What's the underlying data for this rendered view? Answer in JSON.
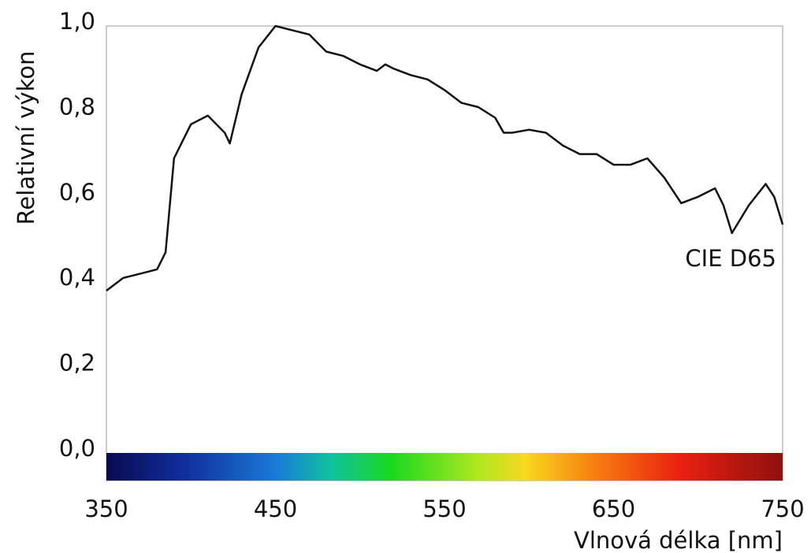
{
  "chart_data": {
    "type": "line",
    "x_label": "Vlnová délka [nm]",
    "y_label": "Relativní výkon",
    "x": [
      350,
      360,
      370,
      380,
      385,
      390,
      395,
      400,
      410,
      420,
      423,
      430,
      440,
      450,
      460,
      470,
      480,
      490,
      500,
      510,
      515,
      520,
      530,
      540,
      550,
      560,
      570,
      580,
      585,
      590,
      600,
      610,
      620,
      630,
      640,
      650,
      660,
      670,
      680,
      690,
      700,
      710,
      715,
      720,
      730,
      740,
      745,
      750
    ],
    "series": [
      {
        "name": "CIE D65",
        "color": "#111111",
        "values": [
          0.38,
          0.41,
          0.42,
          0.43,
          0.47,
          0.69,
          0.73,
          0.77,
          0.79,
          0.75,
          0.725,
          0.84,
          0.95,
          1.0,
          0.99,
          0.98,
          0.94,
          0.93,
          0.91,
          0.895,
          0.91,
          0.9,
          0.885,
          0.875,
          0.85,
          0.82,
          0.81,
          0.785,
          0.75,
          0.75,
          0.757,
          0.75,
          0.72,
          0.7,
          0.7,
          0.675,
          0.675,
          0.69,
          0.645,
          0.585,
          0.6,
          0.62,
          0.58,
          0.515,
          0.58,
          0.63,
          0.6,
          0.535
        ]
      }
    ],
    "xlim": [
      350,
      750
    ],
    "ylim": [
      0,
      1
    ],
    "xticks": [
      350,
      450,
      550,
      650,
      750
    ],
    "yticks": [
      {
        "value": 0,
        "label": "0,0"
      },
      {
        "value": 0.2,
        "label": "0,2"
      },
      {
        "value": 0.4,
        "label": "0,4"
      },
      {
        "value": 0.6,
        "label": "0,6"
      },
      {
        "value": 0.8,
        "label": "0,8"
      },
      {
        "value": 1,
        "label": "1,0"
      }
    ]
  }
}
